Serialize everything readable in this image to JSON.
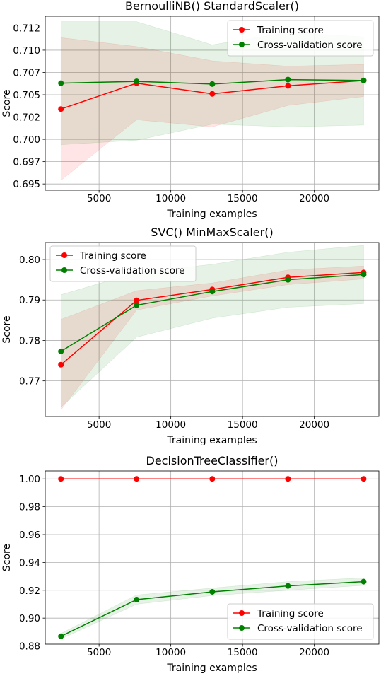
{
  "chart_data": [
    {
      "type": "line",
      "title": "BernoulliNB() StandardScaler()",
      "xlabel": "Training examples",
      "ylabel": "Score",
      "xlim": [
        1250,
        24500
      ],
      "ylim": [
        0.6943,
        0.7138
      ],
      "xticks": [
        5000,
        10000,
        15000,
        20000
      ],
      "xtick_labels": [
        "5000",
        "10000",
        "15000",
        "20000"
      ],
      "yticks": [
        0.695,
        0.6975,
        0.7,
        0.7025,
        0.705,
        0.7075,
        0.71,
        0.7125
      ],
      "ytick_labels": [
        "0.695",
        "0.697",
        "0.700",
        "0.702",
        "0.705",
        "0.707",
        "0.710",
        "0.712"
      ],
      "grid": true,
      "legend": "top-right",
      "x": [
        2344,
        7617,
        12891,
        18164,
        23438
      ],
      "series": [
        {
          "name": "Training score",
          "color": "#ff0000",
          "fill": "#ff0000",
          "values": [
            0.7034,
            0.7063,
            0.7051,
            0.706,
            0.7066
          ],
          "lower": [
            0.6954,
            0.7022,
            0.7014,
            0.7038,
            0.7048
          ],
          "upper": [
            0.7114,
            0.7104,
            0.7088,
            0.7082,
            0.7084
          ]
        },
        {
          "name": "Cross-validation score",
          "color": "#008000",
          "fill": "#008000",
          "values": [
            0.7063,
            0.7065,
            0.7062,
            0.7067,
            0.7066
          ],
          "lower": [
            0.6994,
            0.6999,
            0.7017,
            0.7014,
            0.7016
          ],
          "upper": [
            0.7132,
            0.7132,
            0.7106,
            0.712,
            0.7115
          ]
        }
      ]
    },
    {
      "type": "line",
      "title": "SVC() MinMaxScaler()",
      "xlabel": "Training examples",
      "ylabel": "Score",
      "xlim": [
        1250,
        24500
      ],
      "ylim": [
        0.7612,
        0.8042
      ],
      "xticks": [
        5000,
        10000,
        15000,
        20000
      ],
      "xtick_labels": [
        "5000",
        "10000",
        "15000",
        "20000"
      ],
      "yticks": [
        0.77,
        0.78,
        0.79,
        0.8
      ],
      "ytick_labels": [
        "0.77",
        "0.78",
        "0.79",
        "0.80"
      ],
      "grid": true,
      "legend": "top-left",
      "x": [
        2344,
        7617,
        12891,
        18164,
        23438
      ],
      "series": [
        {
          "name": "Training score",
          "color": "#ff0000",
          "fill": "#ff0000",
          "values": [
            0.774,
            0.7899,
            0.7926,
            0.7956,
            0.7968
          ],
          "lower": [
            0.7628,
            0.7875,
            0.791,
            0.7938,
            0.7952
          ],
          "upper": [
            0.7852,
            0.7923,
            0.7942,
            0.7974,
            0.7984
          ]
        },
        {
          "name": "Cross-validation score",
          "color": "#008000",
          "fill": "#008000",
          "values": [
            0.7773,
            0.7887,
            0.7921,
            0.795,
            0.7963
          ],
          "lower": [
            0.7635,
            0.7808,
            0.7855,
            0.7882,
            0.7891
          ],
          "upper": [
            0.7913,
            0.7968,
            0.7988,
            0.8018,
            0.8035
          ]
        }
      ]
    },
    {
      "type": "line",
      "title": "DecisionTreeClassifier()",
      "xlabel": "Training examples",
      "ylabel": "Score",
      "xlim": [
        1250,
        24500
      ],
      "ylim": [
        0.8813,
        1.0057
      ],
      "xticks": [
        5000,
        10000,
        15000,
        20000
      ],
      "xtick_labels": [
        "5000",
        "10000",
        "15000",
        "20000"
      ],
      "yticks": [
        0.88,
        0.9,
        0.92,
        0.94,
        0.96,
        0.98,
        1.0
      ],
      "ytick_labels": [
        "0.88",
        "0.90",
        "0.92",
        "0.94",
        "0.96",
        "0.98",
        "1.00"
      ],
      "grid": true,
      "legend": "bottom-right",
      "x": [
        2344,
        7617,
        12891,
        18164,
        23438
      ],
      "series": [
        {
          "name": "Training score",
          "color": "#ff0000",
          "fill": "#ff0000",
          "values": [
            1.0,
            1.0,
            1.0,
            1.0,
            1.0
          ],
          "lower": [
            1.0,
            1.0,
            1.0,
            1.0,
            1.0
          ],
          "upper": [
            1.0,
            1.0,
            1.0,
            1.0,
            1.0
          ]
        },
        {
          "name": "Cross-validation score",
          "color": "#008000",
          "fill": "#008000",
          "values": [
            0.887,
            0.9133,
            0.9189,
            0.9231,
            0.9262
          ],
          "lower": [
            0.885,
            0.91,
            0.9162,
            0.92,
            0.9235
          ],
          "upper": [
            0.889,
            0.9166,
            0.9216,
            0.9262,
            0.9289
          ]
        }
      ]
    }
  ]
}
